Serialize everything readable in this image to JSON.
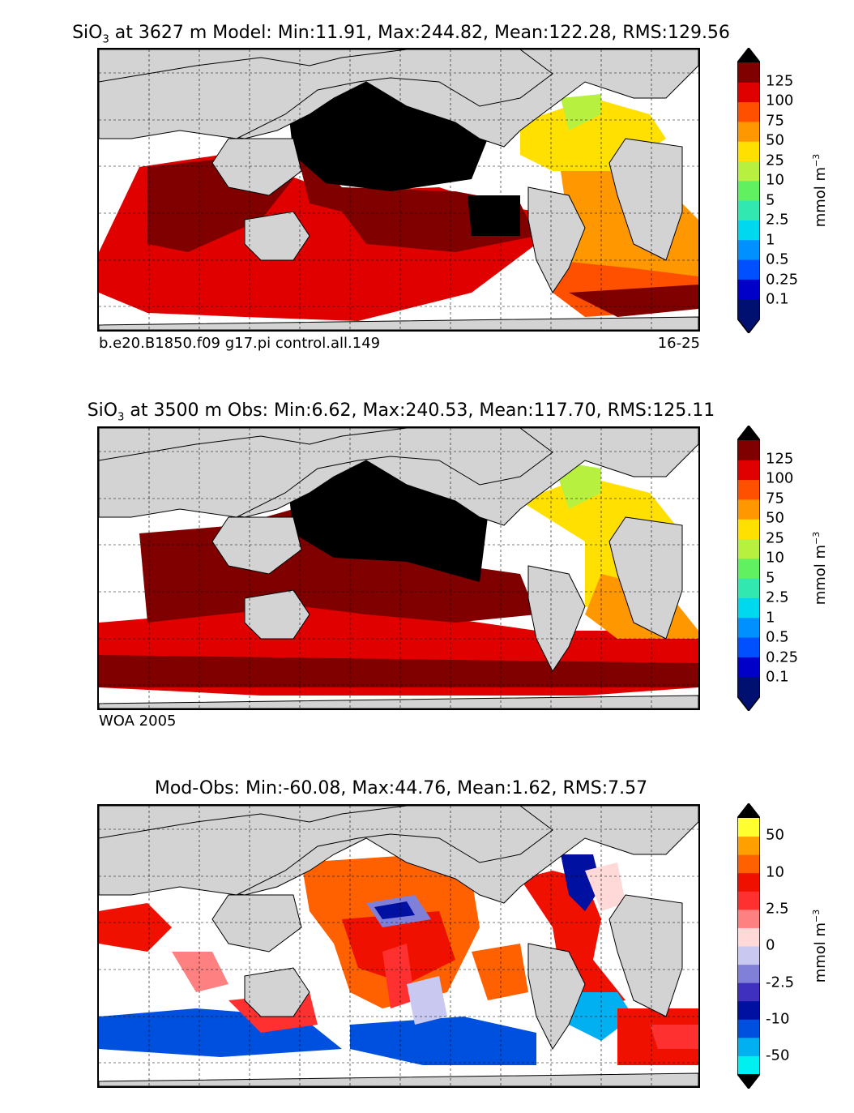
{
  "panels": [
    {
      "title_prefix": "SiO",
      "title_sub": "3",
      "title_rest": " at 3627 m Model: Min:11.91, Max:244.82, Mean:122.28, RMS:129.56",
      "caption_left": "b.e20.B1850.f09 g17.pi control.all.149",
      "caption_right": "16-25",
      "colorbar": {
        "ticks": [
          "125",
          "100",
          "75",
          "50",
          "25",
          "10",
          "5",
          "2.5",
          "1",
          "0.5",
          "0.25",
          "0.1"
        ],
        "unit": "mmol m",
        "unit_exp": "−3",
        "colors": [
          "#001070",
          "#0000c8",
          "#0050ff",
          "#0090ff",
          "#00d8f0",
          "#30e8b0",
          "#60f060",
          "#b8f040",
          "#ffe000",
          "#ff9800",
          "#ff5000",
          "#e00000",
          "#800000"
        ],
        "top_arrow": "#000000",
        "bottom_arrow": "#001070"
      }
    },
    {
      "title_prefix": "SiO",
      "title_sub": "3",
      "title_rest": " at 3500 m Obs: Min:6.62, Max:240.53, Mean:117.70, RMS:125.11",
      "caption_left": "WOA 2005",
      "caption_right": "",
      "colorbar": {
        "ticks": [
          "125",
          "100",
          "75",
          "50",
          "25",
          "10",
          "5",
          "2.5",
          "1",
          "0.5",
          "0.25",
          "0.1"
        ],
        "unit": "mmol m",
        "unit_exp": "−3",
        "colors": [
          "#001070",
          "#0000c8",
          "#0050ff",
          "#0090ff",
          "#00d8f0",
          "#30e8b0",
          "#60f060",
          "#b8f040",
          "#ffe000",
          "#ff9800",
          "#ff5000",
          "#e00000",
          "#800000"
        ],
        "top_arrow": "#000000",
        "bottom_arrow": "#001070"
      }
    },
    {
      "title_prefix": "Mod-Obs: Min:-60.08, Max:44.76, Mean:1.62, RMS:7.57",
      "title_sub": "",
      "title_rest": "",
      "caption_left": "",
      "caption_right": "",
      "colorbar": {
        "ticks": [
          "50",
          "10",
          "2.5",
          "0",
          "-2.5",
          "-10",
          "-50"
        ],
        "unit": "mmol m",
        "unit_exp": "−3",
        "colors": [
          "#00f0f0",
          "#00b0f0",
          "#0050e0",
          "#0010a0",
          "#4030c0",
          "#8080d8",
          "#c8c8f0",
          "#ffd8d8",
          "#ff8080",
          "#ff3030",
          "#f01000",
          "#ff6000",
          "#ffa000",
          "#ffff30"
        ],
        "top_arrow": "#000000",
        "bottom_arrow": "#000000"
      }
    }
  ],
  "map_colors": {
    "land": "#d3d3d3",
    "ocean_nodata": "#ffffff",
    "grid": "#000000"
  }
}
